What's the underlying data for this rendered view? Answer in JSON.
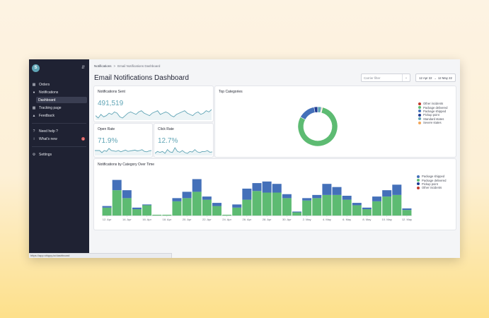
{
  "sidebar": {
    "logo": "S",
    "items": [
      {
        "label": "Orders",
        "icon": "orders-icon"
      },
      {
        "label": "Notifications",
        "icon": "bell-icon"
      },
      {
        "label": "Dashboard"
      },
      {
        "label": "Tracking page",
        "icon": "monitor-icon"
      },
      {
        "label": "Feedback",
        "icon": "thumbs-up-icon"
      },
      {
        "label": "Need help ?",
        "icon": "help-icon"
      },
      {
        "label": "What's new",
        "icon": "info-icon",
        "badge": "1"
      },
      {
        "label": "Settings",
        "icon": "gear-icon"
      }
    ]
  },
  "status_url": "https://app.shippy.io/dashboard",
  "breadcrumb": {
    "root": "Notifications",
    "separator": ">",
    "current": "Email Notifications Dashboard"
  },
  "page_title": "Email Notifications Dashboard",
  "carrier_filter": {
    "placeholder": "Carrier filter"
  },
  "date_range": {
    "start": "12 Apr 22",
    "arrow": "→",
    "end": "12 May 22"
  },
  "cards": {
    "sent": {
      "title": "Notifications Sent",
      "value": "491,519"
    },
    "open": {
      "title": "Open Rate",
      "value": "71.9%"
    },
    "click": {
      "title": "Click Rate",
      "value": "12.7%"
    },
    "top": {
      "title": "Top Categories"
    },
    "time": {
      "title": "Notifications by Category Over Time"
    }
  },
  "colors": {
    "teal": "#5fa4b5",
    "green": "#5dbb72",
    "blue": "#4470b9",
    "navy": "#1f3a93",
    "red": "#c0392b",
    "orange": "#f2a65a",
    "sidebar_bg": "#1f2233"
  },
  "top_categories_legend": [
    {
      "label": "Other incidents",
      "color": "#c0392b"
    },
    {
      "label": "Package delivered",
      "color": "#5dbb72"
    },
    {
      "label": "Package shipped",
      "color": "#4470b9"
    },
    {
      "label": "Pickup point",
      "color": "#1f3a93"
    },
    {
      "label": "Standard states",
      "color": "#5fa4b5"
    },
    {
      "label": "Severe states",
      "color": "#f2a65a"
    }
  ],
  "chart_data": [
    {
      "type": "line",
      "title": "Notifications Sent",
      "values": [
        10,
        8,
        11,
        9,
        10,
        12,
        11,
        13,
        12,
        9,
        8,
        10,
        12,
        13,
        12,
        11,
        13,
        14,
        12,
        11,
        10,
        12,
        13,
        14,
        11,
        12,
        13,
        12,
        10,
        9,
        11,
        12,
        13,
        14,
        12,
        11,
        10,
        12,
        13,
        11,
        12,
        14,
        13,
        15
      ]
    },
    {
      "type": "line",
      "title": "Open Rate",
      "values": [
        72,
        72,
        72,
        71.5,
        72,
        71.8,
        72.5,
        72,
        71.9,
        71.8,
        72,
        71.7,
        71.9,
        72.1,
        71.8,
        71.9,
        72,
        72.1,
        71.9,
        72,
        72.2,
        71.8,
        71.7,
        71.9,
        72
      ]
    },
    {
      "type": "line",
      "title": "Click Rate",
      "values": [
        12,
        13,
        12.5,
        13,
        12,
        14,
        12.8,
        12.5,
        15,
        13,
        12.6,
        13.5,
        12.4,
        12,
        13,
        12.7,
        14,
        12.8,
        12.4,
        13,
        12.9,
        13.5,
        12.6,
        12.8
      ]
    },
    {
      "type": "pie",
      "title": "Top Categories",
      "slices": [
        {
          "name": "Package delivered",
          "value": 79
        },
        {
          "name": "Package shipped",
          "value": 14
        },
        {
          "name": "Pickup point",
          "value": 3
        },
        {
          "name": "Standard states",
          "value": 3
        },
        {
          "name": "Other incidents",
          "value": 0.5
        },
        {
          "name": "Severe states",
          "value": 0.5
        }
      ]
    },
    {
      "type": "bar",
      "title": "Notifications by Category Over Time",
      "stacked": true,
      "categories": [
        "12. Apr",
        "13. Apr",
        "14. Apr",
        "15. Apr",
        "16. Apr",
        "17. Apr",
        "18. Apr",
        "19. Apr",
        "20. Apr",
        "21. Apr",
        "22. Apr",
        "23. Apr",
        "24. Apr",
        "25. Apr",
        "26. Apr",
        "27. Apr",
        "28. Apr",
        "29. Apr",
        "30. Apr",
        "1. May",
        "2. May",
        "3. May",
        "4. May",
        "5. May",
        "6. May",
        "7. May",
        "8. May",
        "9. May",
        "10. May",
        "11. May",
        "12. May"
      ],
      "x_tick_labels": [
        "12. Apr",
        "14. Apr",
        "16. Apr",
        "18. Apr",
        "20. Apr",
        "22. Apr",
        "24. Apr",
        "26. Apr",
        "28. Apr",
        "30. Apr",
        "2. May",
        "4. May",
        "6. May",
        "8. May",
        "10. May",
        "12. May"
      ],
      "series": [
        {
          "name": "Package delivered",
          "values": [
            10,
            32,
            22,
            8,
            13,
            1,
            1,
            18,
            22,
            30,
            20,
            12,
            1,
            10,
            20,
            31,
            29,
            29,
            22,
            4,
            19,
            22,
            26,
            26,
            20,
            13,
            8,
            18,
            24,
            26,
            7
          ]
        },
        {
          "name": "Package shipped",
          "values": [
            2,
            13,
            10,
            2,
            1,
            0,
            0,
            4,
            8,
            16,
            4,
            4,
            0,
            4,
            14,
            10,
            14,
            11,
            5,
            1,
            3,
            4,
            14,
            10,
            5,
            3,
            2,
            6,
            8,
            13,
            2
          ]
        },
        {
          "name": "Pickup point",
          "values": [
            0,
            0,
            0,
            0,
            0,
            0,
            0,
            0,
            0,
            0,
            0,
            0,
            0,
            0,
            0,
            0,
            0,
            0,
            0,
            0,
            0,
            0,
            0,
            0,
            0,
            0,
            0,
            0,
            0,
            0,
            0
          ]
        },
        {
          "name": "Other incidents",
          "values": [
            0,
            0,
            0,
            0,
            0,
            0,
            0,
            0,
            0,
            0,
            0,
            0,
            0,
            0,
            0,
            0,
            0,
            0,
            0,
            0,
            0,
            0,
            0,
            0,
            0,
            0,
            0,
            0,
            0,
            0,
            0
          ]
        }
      ],
      "legend": [
        {
          "label": "Package shipped",
          "color": "#4470b9"
        },
        {
          "label": "Package delivered",
          "color": "#5dbb72"
        },
        {
          "label": "Pickup point",
          "color": "#1f3a93"
        },
        {
          "label": "Other incidents",
          "color": "#c0392b"
        }
      ]
    }
  ]
}
